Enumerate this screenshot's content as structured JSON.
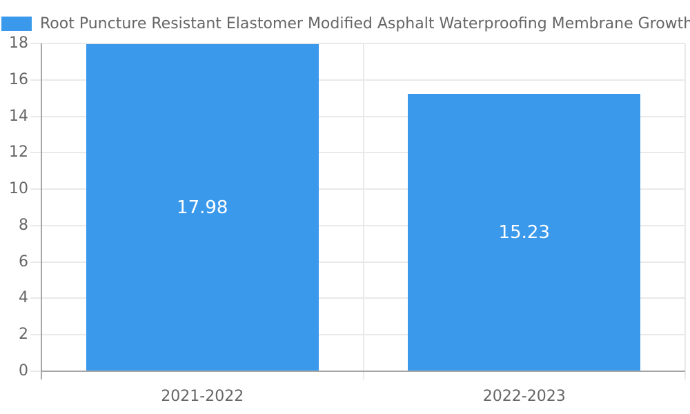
{
  "legend": {
    "label": "Root Puncture Resistant Elastomer Modified Asphalt Waterproofing Membrane Growth ("
  },
  "chart_data": {
    "type": "bar",
    "title": "Root Puncture Resistant Elastomer Modified Asphalt Waterproofing Membrane Growth (",
    "legend_position": "top-left",
    "categories": [
      "2021-2022",
      "2022-2023"
    ],
    "values": [
      17.98,
      15.23
    ],
    "value_labels": [
      "17.98",
      "15.23"
    ],
    "series": [
      {
        "name": "Root Puncture Resistant Elastomer Modified Asphalt Waterproofing Membrane Growth (",
        "values": [
          17.98,
          15.23
        ]
      }
    ],
    "xlabel": "",
    "ylabel": "",
    "ylim": [
      0,
      18
    ],
    "yticks": [
      0,
      2,
      4,
      6,
      8,
      10,
      12,
      14,
      16,
      18
    ],
    "grid": true,
    "colors": {
      "bar": "#3B99EC",
      "grid_line": "#e9e9e9",
      "axis_line": "#a6a6a6",
      "tick_text": "#666666",
      "value_text": "#ffffff",
      "background": "#ffffff"
    }
  }
}
